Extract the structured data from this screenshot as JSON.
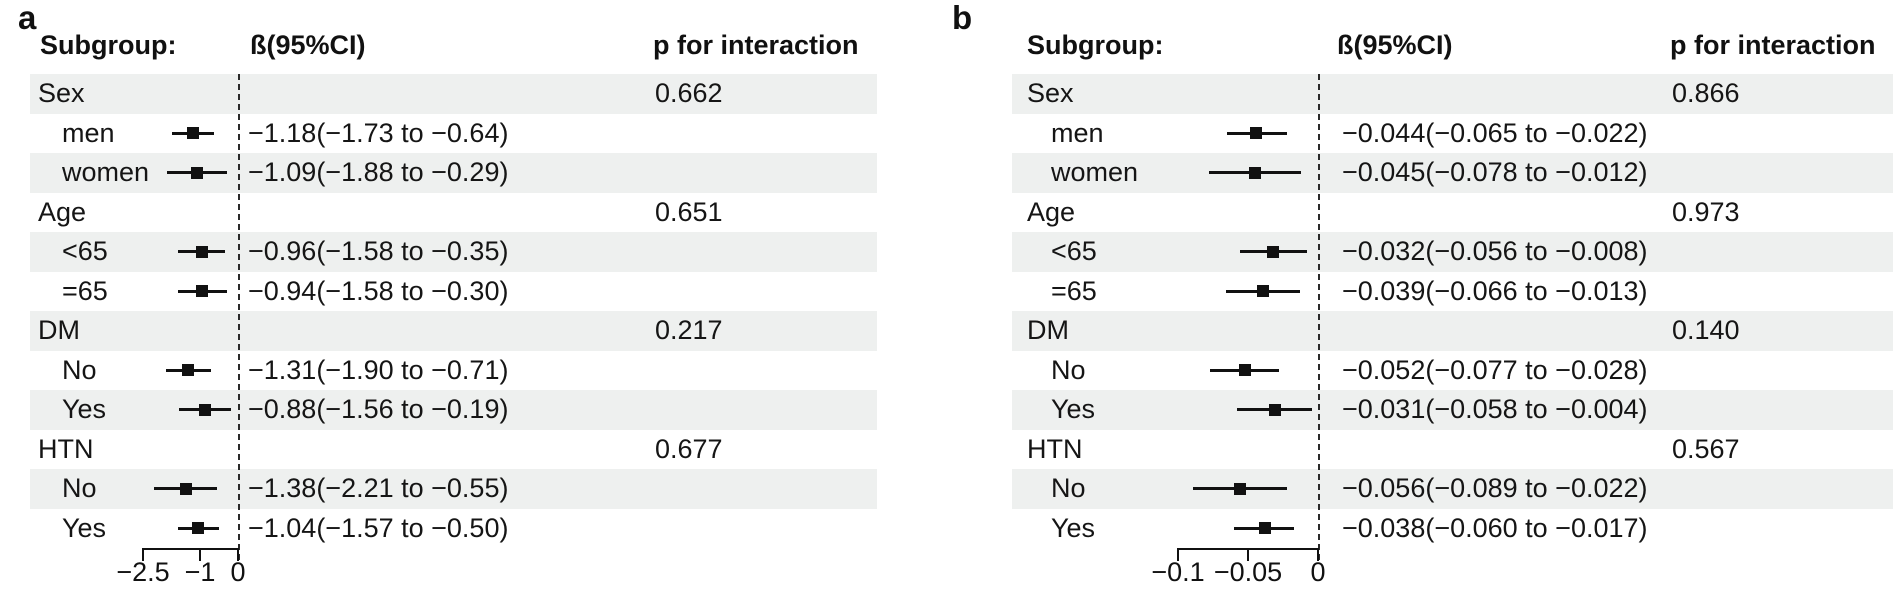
{
  "figure": {
    "description": "Two-panel forest plot of subgroup analyses"
  },
  "panels": [
    {
      "label": "a",
      "header": {
        "subgroup": "Subgroup:",
        "beta": "ß(95%CI)",
        "p": "p for interaction"
      },
      "rows": [
        {
          "type": "group",
          "label": "Sex",
          "p": "0.662"
        },
        {
          "type": "item",
          "label": "men",
          "beta": -1.18,
          "lo": -1.73,
          "hi": -0.64,
          "text": "−1.18(−1.73 to −0.64)"
        },
        {
          "type": "item",
          "label": "women",
          "beta": -1.09,
          "lo": -1.88,
          "hi": -0.29,
          "text": "−1.09(−1.88 to −0.29)"
        },
        {
          "type": "group",
          "label": "Age",
          "p": "0.651"
        },
        {
          "type": "item",
          "label": "<65",
          "beta": -0.96,
          "lo": -1.58,
          "hi": -0.35,
          "text": "−0.96(−1.58 to −0.35)"
        },
        {
          "type": "item",
          "label": "=65",
          "beta": -0.94,
          "lo": -1.58,
          "hi": -0.3,
          "text": "−0.94(−1.58 to −0.30)"
        },
        {
          "type": "group",
          "label": "DM",
          "p": "0.217"
        },
        {
          "type": "item",
          "label": "No",
          "beta": -1.31,
          "lo": -1.9,
          "hi": -0.71,
          "text": "−1.31(−1.90 to −0.71)"
        },
        {
          "type": "item",
          "label": "Yes",
          "beta": -0.88,
          "lo": -1.56,
          "hi": -0.19,
          "text": "−0.88(−1.56 to −0.19)"
        },
        {
          "type": "group",
          "label": "HTN",
          "p": "0.677"
        },
        {
          "type": "item",
          "label": "No",
          "beta": -1.38,
          "lo": -2.21,
          "hi": -0.55,
          "text": "−1.38(−2.21 to −0.55)"
        },
        {
          "type": "item",
          "label": "Yes",
          "beta": -1.04,
          "lo": -1.57,
          "hi": -0.5,
          "text": "−1.04(−1.57 to −0.50)"
        }
      ],
      "axis": {
        "ticks": [
          {
            "v": -2.5,
            "label": "−2.5"
          },
          {
            "v": -1,
            "label": "−1"
          },
          {
            "v": 0,
            "label": "0"
          }
        ]
      }
    },
    {
      "label": "b",
      "header": {
        "subgroup": "Subgroup:",
        "beta": "ß(95%CI)",
        "p": "p for interaction"
      },
      "rows": [
        {
          "type": "group",
          "label": "Sex",
          "p": "0.866"
        },
        {
          "type": "item",
          "label": "men",
          "beta": -0.044,
          "lo": -0.065,
          "hi": -0.022,
          "text": "−0.044(−0.065 to −0.022)"
        },
        {
          "type": "item",
          "label": "women",
          "beta": -0.045,
          "lo": -0.078,
          "hi": -0.012,
          "text": "−0.045(−0.078 to −0.012)"
        },
        {
          "type": "group",
          "label": "Age",
          "p": "0.973"
        },
        {
          "type": "item",
          "label": "<65",
          "beta": -0.032,
          "lo": -0.056,
          "hi": -0.008,
          "text": "−0.032(−0.056 to −0.008)"
        },
        {
          "type": "item",
          "label": "=65",
          "beta": -0.039,
          "lo": -0.066,
          "hi": -0.013,
          "text": "−0.039(−0.066 to −0.013)"
        },
        {
          "type": "group",
          "label": "DM",
          "p": "0.140"
        },
        {
          "type": "item",
          "label": "No",
          "beta": -0.052,
          "lo": -0.077,
          "hi": -0.028,
          "text": "−0.052(−0.077 to −0.028)"
        },
        {
          "type": "item",
          "label": "Yes",
          "beta": -0.031,
          "lo": -0.058,
          "hi": -0.004,
          "text": "−0.031(−0.058 to −0.004)"
        },
        {
          "type": "group",
          "label": "HTN",
          "p": "0.567"
        },
        {
          "type": "item",
          "label": "No",
          "beta": -0.056,
          "lo": -0.089,
          "hi": -0.022,
          "text": "−0.056(−0.089 to −0.022)"
        },
        {
          "type": "item",
          "label": "Yes",
          "beta": -0.038,
          "lo": -0.06,
          "hi": -0.017,
          "text": "−0.038(−0.060 to −0.017)"
        }
      ],
      "axis": {
        "ticks": [
          {
            "v": -0.1,
            "label": "−0.1"
          },
          {
            "v": -0.05,
            "label": "−0.05"
          },
          {
            "v": 0,
            "label": "0"
          }
        ]
      }
    }
  ],
  "chart_data": [
    {
      "type": "scatter",
      "variant": "forest-plot",
      "panel": "a",
      "title": "",
      "columns": [
        "Subgroup:",
        "ß(95%CI)",
        "p for interaction"
      ],
      "categories": [
        "Sex",
        "men",
        "women",
        "Age",
        "<65",
        "=65",
        "DM",
        "No",
        "Yes",
        "HTN",
        "No",
        "Yes"
      ],
      "series": [
        {
          "name": "beta",
          "values": [
            null,
            -1.18,
            -1.09,
            null,
            -0.96,
            -0.94,
            null,
            -1.31,
            -0.88,
            null,
            -1.38,
            -1.04
          ]
        },
        {
          "name": "ci_lower",
          "values": [
            null,
            -1.73,
            -1.88,
            null,
            -1.58,
            -1.58,
            null,
            -1.9,
            -1.56,
            null,
            -2.21,
            -1.57
          ]
        },
        {
          "name": "ci_upper",
          "values": [
            null,
            -0.64,
            -0.29,
            null,
            -0.35,
            -0.3,
            null,
            -0.71,
            -0.19,
            null,
            -0.55,
            -0.5
          ]
        }
      ],
      "p_for_interaction": {
        "Sex": "0.662",
        "Age": "0.651",
        "DM": "0.217",
        "HTN": "0.677"
      },
      "xlabel": "",
      "ylabel": "",
      "x_ticks": [
        -2.5,
        -1,
        0
      ],
      "xlim": [
        -2.8,
        0
      ],
      "reference_line_x": 0,
      "grid": false,
      "legend": false
    },
    {
      "type": "scatter",
      "variant": "forest-plot",
      "panel": "b",
      "title": "",
      "columns": [
        "Subgroup:",
        "ß(95%CI)",
        "p for interaction"
      ],
      "categories": [
        "Sex",
        "men",
        "women",
        "Age",
        "<65",
        "=65",
        "DM",
        "No",
        "Yes",
        "HTN",
        "No",
        "Yes"
      ],
      "series": [
        {
          "name": "beta",
          "values": [
            null,
            -0.044,
            -0.045,
            null,
            -0.032,
            -0.039,
            null,
            -0.052,
            -0.031,
            null,
            -0.056,
            -0.038
          ]
        },
        {
          "name": "ci_lower",
          "values": [
            null,
            -0.065,
            -0.078,
            null,
            -0.056,
            -0.066,
            null,
            -0.077,
            -0.058,
            null,
            -0.089,
            -0.06
          ]
        },
        {
          "name": "ci_upper",
          "values": [
            null,
            -0.022,
            -0.012,
            null,
            -0.008,
            -0.013,
            null,
            -0.028,
            -0.004,
            null,
            -0.022,
            -0.017
          ]
        }
      ],
      "p_for_interaction": {
        "Sex": "0.866",
        "Age": "0.973",
        "DM": "0.140",
        "HTN": "0.567"
      },
      "xlabel": "",
      "ylabel": "",
      "x_ticks": [
        -0.1,
        -0.05,
        0
      ],
      "xlim": [
        -0.105,
        0
      ],
      "reference_line_x": 0,
      "grid": false,
      "legend": false
    }
  ]
}
